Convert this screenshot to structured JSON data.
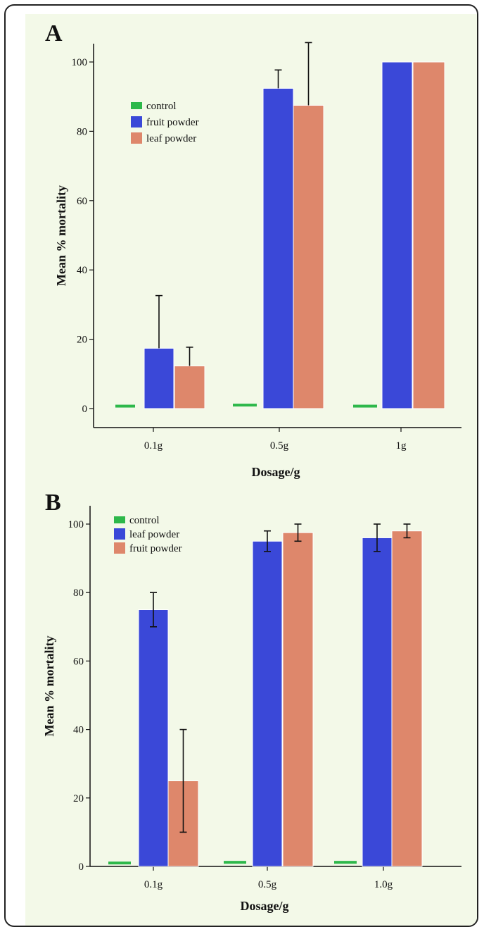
{
  "colors": {
    "control": "#2db84a",
    "blue": "#3a48d8",
    "salmon": "#de876b",
    "axis": "#111111",
    "errorbar": "#111111"
  },
  "chart_data": [
    {
      "type": "bar",
      "panel": "A",
      "xlabel": "Dosage/g",
      "ylabel": "Mean % mortality",
      "ylim": [
        0,
        105
      ],
      "yticks": [
        0,
        20,
        40,
        60,
        80,
        100
      ],
      "categories": [
        "0.1g",
        "0.5g",
        "1g"
      ],
      "legend_position": "top-left",
      "error_style": "upper",
      "series": [
        {
          "name": "control",
          "color": "#2db84a",
          "values": [
            0.7,
            1.0,
            0.7
          ],
          "errors": [
            null,
            null,
            null
          ]
        },
        {
          "name": "fruit powder",
          "color": "#3a48d8",
          "values": [
            17.4,
            92.4,
            100
          ],
          "errors": [
            15.2,
            5.3,
            null
          ]
        },
        {
          "name": "leaf powder",
          "color": "#de876b",
          "values": [
            12.3,
            87.5,
            100
          ],
          "errors": [
            5.4,
            18.1,
            null
          ]
        }
      ]
    },
    {
      "type": "bar",
      "panel": "B",
      "xlabel": "Dosage/g",
      "ylabel": "Mean % mortality",
      "ylim": [
        0,
        105
      ],
      "yticks": [
        0,
        20,
        40,
        60,
        80,
        100
      ],
      "categories": [
        "0.1g",
        "0.5g",
        "1.0g"
      ],
      "legend_position": "top-left",
      "error_style": "both",
      "series": [
        {
          "name": "control",
          "color": "#2db84a",
          "values": [
            1.0,
            1.2,
            1.2
          ],
          "errors": [
            null,
            null,
            null
          ]
        },
        {
          "name": "leaf powder",
          "color": "#3a48d8",
          "values": [
            75,
            95,
            96
          ],
          "errors": [
            5,
            3,
            4
          ]
        },
        {
          "name": "fruit powder",
          "color": "#de876b",
          "values": [
            25,
            97.5,
            98
          ],
          "errors": [
            15,
            2.5,
            2
          ]
        }
      ]
    }
  ]
}
